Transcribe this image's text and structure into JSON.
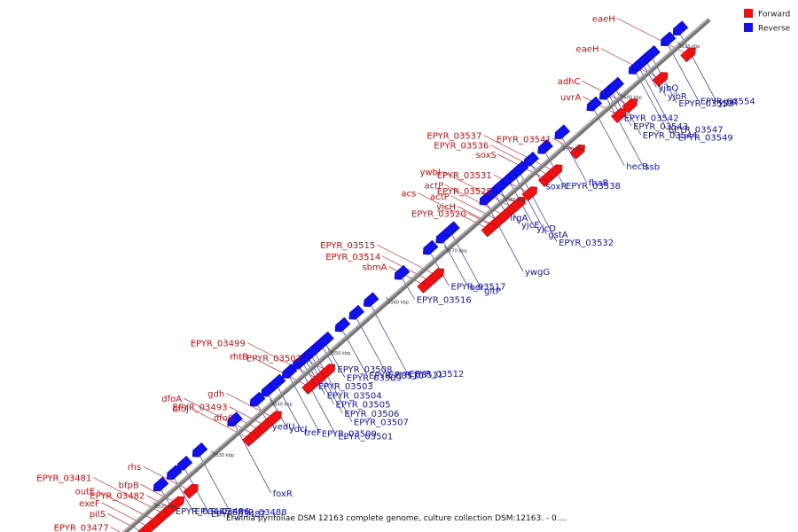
{
  "legend": [
    {
      "label": "Forward",
      "color": "#ee1111"
    },
    {
      "label": "Reverse",
      "color": "#1111ee"
    }
  ],
  "caption": "Erwinia pyrifoliae DSM 12163 complete genome, culture collection DSM:12163. - 0....",
  "colors": {
    "forward": "#ee1111",
    "reverse": "#1111ee",
    "backbone": "#777777",
    "forward_text": "#c81414",
    "reverse_text": "#1414b4"
  },
  "chart_data": {
    "type": "linear-genome-map",
    "scale_ticks_kbp": [
      3520,
      3530,
      3540,
      3550,
      3560,
      3570,
      3580,
      3590,
      3600,
      3610
    ],
    "forward_genes": [
      {
        "name": "EPYR_03477",
        "pos": 3515.2
      },
      {
        "name": "pilS",
        "pos": 3516.7
      },
      {
        "name": "exeF",
        "pos": 3517.7
      },
      {
        "name": "outE",
        "pos": 3518.9
      },
      {
        "name": "EPYR_03481",
        "pos": 3520.3
      },
      {
        "name": "EPYR_03482",
        "pos": 3521.4
      },
      {
        "name": "bfpB",
        "pos": 3522.4
      },
      {
        "name": "rhs",
        "pos": 3524.8
      },
      {
        "name": "dfoJ",
        "pos": 3535.0
      },
      {
        "name": "dfoA",
        "pos": 3535.8
      },
      {
        "name": "dfoC",
        "pos": 3536.7
      },
      {
        "name": "EPYR_03493",
        "pos": 3537.6
      },
      {
        "name": "gdh",
        "pos": 3539.1
      },
      {
        "name": "rhtB",
        "pos": 3545.2
      },
      {
        "name": "EPYR_03499",
        "pos": 3546.7
      },
      {
        "name": "EPYR_03502",
        "pos": 3548.3
      },
      {
        "name": "sbmA",
        "pos": 3565.0
      },
      {
        "name": "EPYR_03514",
        "pos": 3565.9
      },
      {
        "name": "EPYR_03515",
        "pos": 3567.0
      },
      {
        "name": "EPYR_03520",
        "pos": 3576.6
      },
      {
        "name": "acs",
        "pos": 3576.0
      },
      {
        "name": "yjcH",
        "pos": 3576.8
      },
      {
        "name": "actP",
        "pos": 3577.7
      },
      {
        "name": "actP",
        "pos": 3578.7
      },
      {
        "name": "ywbl",
        "pos": 3580.2
      },
      {
        "name": "EPYR_03528",
        "pos": 3581.0
      },
      {
        "name": "EPYR_03531",
        "pos": 3583.0
      },
      {
        "name": "soxS",
        "pos": 3585.8
      },
      {
        "name": "EPYR_03536",
        "pos": 3586.5
      },
      {
        "name": "EPYR_03537",
        "pos": 3587.3
      },
      {
        "name": "EPYR_03541",
        "pos": 3591.2
      },
      {
        "name": "uvrA",
        "pos": 3598.3
      },
      {
        "name": "adhC",
        "pos": 3600.2
      },
      {
        "name": "eaeH",
        "pos": 3605.4
      },
      {
        "name": "eaeH",
        "pos": 3610.2
      }
    ],
    "reverse_genes": [
      {
        "name": "EPYR_03485",
        "pos": 3522.0
      },
      {
        "name": "EPYR_03486",
        "pos": 3524.3
      },
      {
        "name": "EPYR_03487",
        "pos": 3526.1
      },
      {
        "name": "EPYR_03488",
        "pos": 3528.7
      },
      {
        "name": "foxR",
        "pos": 3534.7
      },
      {
        "name": "yedU",
        "pos": 3538.6
      },
      {
        "name": "ydcJ",
        "pos": 3540.5
      },
      {
        "name": "treF",
        "pos": 3542.1
      },
      {
        "name": "EPYR_03500",
        "pos": 3544.1
      },
      {
        "name": "EPYR_03501",
        "pos": 3545.9
      },
      {
        "name": "EPYR_03503",
        "pos": 3546.5
      },
      {
        "name": "EPYR_03504",
        "pos": 3547.0
      },
      {
        "name": "EPYR_03505",
        "pos": 3547.5
      },
      {
        "name": "EPYR_03506",
        "pos": 3548.0
      },
      {
        "name": "EPYR_03507",
        "pos": 3548.6
      },
      {
        "name": "EPYR_03508",
        "pos": 3549.8
      },
      {
        "name": "EPYR_03509",
        "pos": 3550.4
      },
      {
        "name": "EPYR_03510",
        "pos": 3553.2
      },
      {
        "name": "EPYR_03511",
        "pos": 3555.6
      },
      {
        "name": "EPYR_03512",
        "pos": 3558.1
      },
      {
        "name": "EPYR_03516",
        "pos": 3563.4
      },
      {
        "name": "EPYR_03517",
        "pos": 3568.3
      },
      {
        "name": "aer",
        "pos": 3570.5
      },
      {
        "name": "gltP",
        "pos": 3572.0
      },
      {
        "name": "ywgG",
        "pos": 3578.0
      },
      {
        "name": "lrgA",
        "pos": 3579.5
      },
      {
        "name": "yjcE",
        "pos": 3580.4
      },
      {
        "name": "yjcD",
        "pos": 3582.0
      },
      {
        "name": "gstA",
        "pos": 3583.0
      },
      {
        "name": "EPYR_03532",
        "pos": 3583.8
      },
      {
        "name": "soxR",
        "pos": 3585.6
      },
      {
        "name": "EPYR_03538",
        "pos": 3588.0
      },
      {
        "name": "fhaB",
        "pos": 3590.9
      },
      {
        "name": "hecB",
        "pos": 3596.4
      },
      {
        "name": "ssb",
        "pos": 3598.6
      },
      {
        "name": "EPYR_03542",
        "pos": 3599.0
      },
      {
        "name": "EPYR_03543",
        "pos": 3599.6
      },
      {
        "name": "EPYR_03544",
        "pos": 3600.2
      },
      {
        "name": "EPYR_03547",
        "pos": 3603.6
      },
      {
        "name": "EPYR_03549",
        "pos": 3604.3
      },
      {
        "name": "yjbQ",
        "pos": 3604.9
      },
      {
        "name": "yjbR",
        "pos": 3605.5
      },
      {
        "name": "EPYR_03553",
        "pos": 3606.4
      },
      {
        "name": "EPYR_03554",
        "pos": 3609.1
      },
      {
        "name": "yjbR",
        "pos": 3611.2
      }
    ]
  }
}
